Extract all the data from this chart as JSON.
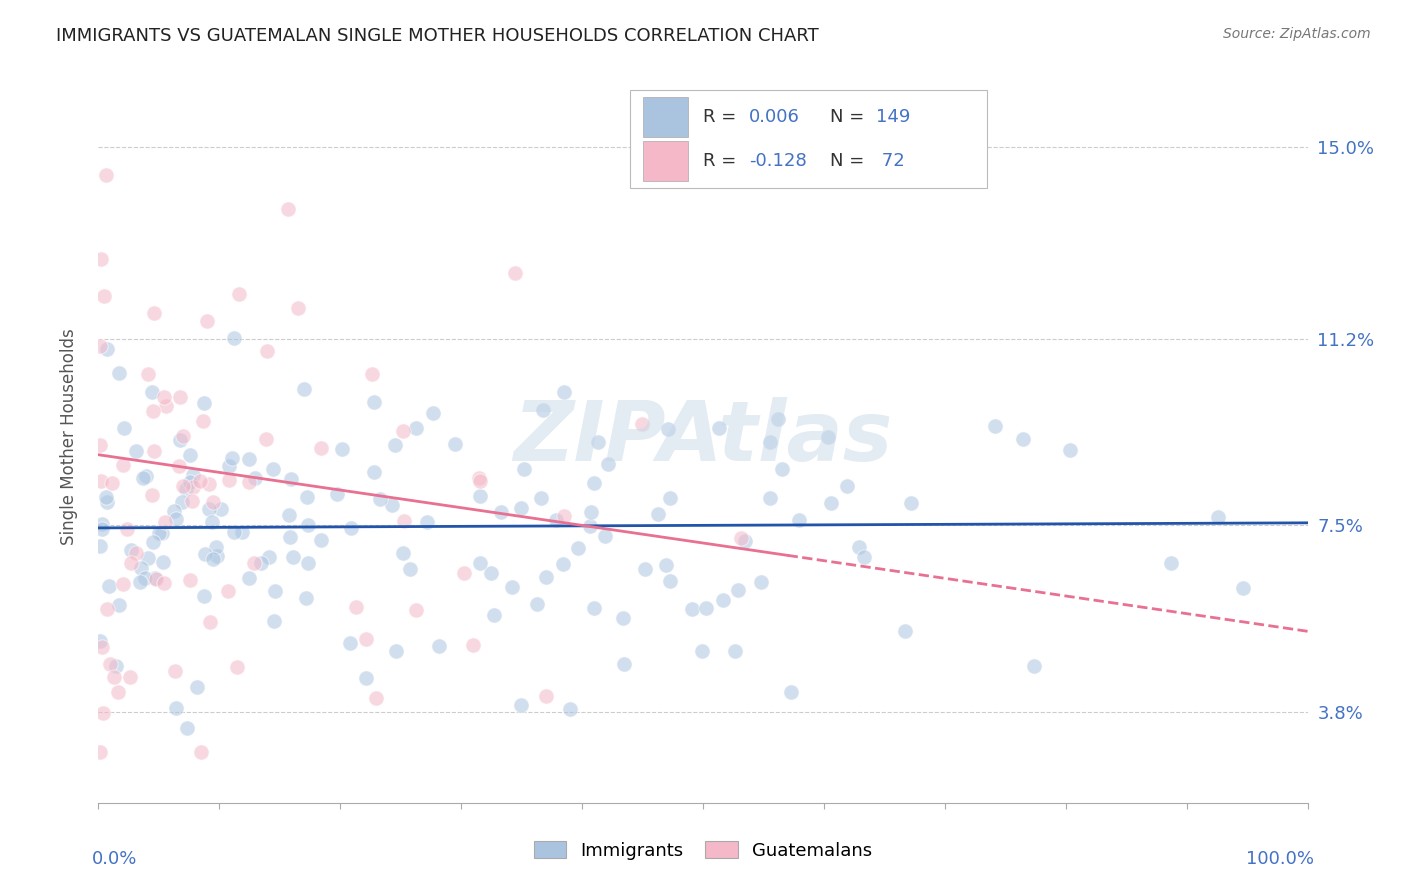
{
  "title": "IMMIGRANTS VS GUATEMALAN SINGLE MOTHER HOUSEHOLDS CORRELATION CHART",
  "source": "Source: ZipAtlas.com",
  "ylabel": "Single Mother Households",
  "yticks": [
    3.8,
    7.5,
    11.2,
    15.0
  ],
  "ytick_labels": [
    "3.8%",
    "7.5%",
    "11.2%",
    "15.0%"
  ],
  "ylim": [
    2.0,
    16.5
  ],
  "xlim": [
    0.0,
    1.0
  ],
  "immigrants_color": "#aac4e0",
  "guatemalans_color": "#f4b8c8",
  "trendline_immigrants_color": "#2255aa",
  "trendline_guatemalans_color": "#e87090",
  "background_color": "#ffffff",
  "grid_color": "#cccccc",
  "axis_label_color": "#4472c4",
  "title_color": "#222222",
  "watermark": "ZIPAtlas",
  "marker_size": 120,
  "marker_alpha": 0.55,
  "legend_R_color": "#4472c4",
  "legend_N_color": "#4472c4",
  "legend_text_color": "#333333"
}
